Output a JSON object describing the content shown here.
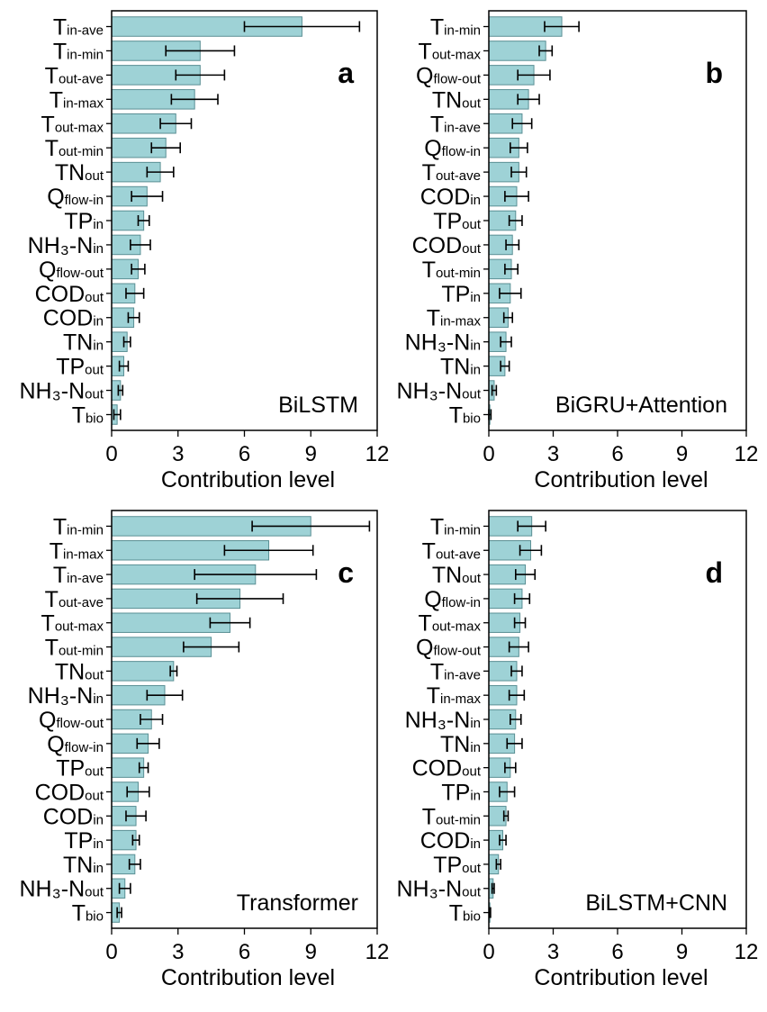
{
  "style": {
    "bar_fill": "#9ed2d6",
    "bar_stroke": "#5a8f94",
    "error_color": "#000000"
  },
  "chart_data": [
    {
      "type": "bar",
      "orientation": "horizontal",
      "panel_letter": "a",
      "model": "BiLSTM",
      "xlabel": "Contribution level",
      "xlim": [
        0,
        12
      ],
      "xticks": [
        "0",
        "3",
        "6",
        "9",
        "12"
      ],
      "categories": [
        {
          "base": "T",
          "sub": "in-ave"
        },
        {
          "base": "T",
          "sub": "in-min"
        },
        {
          "base": "T",
          "sub": "out-ave"
        },
        {
          "base": "T",
          "sub": "in-max"
        },
        {
          "base": "T",
          "sub": "out-max"
        },
        {
          "base": "T",
          "sub": "out-min"
        },
        {
          "base": "TN",
          "sub": "out"
        },
        {
          "base": "Q",
          "sub": "flow-in"
        },
        {
          "base": "TP",
          "sub": "in"
        },
        {
          "base": "NH₃-N",
          "sub": "in"
        },
        {
          "base": "Q",
          "sub": "flow-out"
        },
        {
          "base": "COD",
          "sub": "out"
        },
        {
          "base": "COD",
          "sub": "in"
        },
        {
          "base": "TN",
          "sub": "in"
        },
        {
          "base": "TP",
          "sub": "out"
        },
        {
          "base": "NH₃-N",
          "sub": "out"
        },
        {
          "base": "T",
          "sub": "bio"
        }
      ],
      "values": [
        8.6,
        4.0,
        4.0,
        3.75,
        2.9,
        2.45,
        2.2,
        1.6,
        1.45,
        1.3,
        1.2,
        1.05,
        1.0,
        0.7,
        0.55,
        0.4,
        0.25
      ],
      "errors": [
        2.6,
        1.55,
        1.1,
        1.05,
        0.7,
        0.65,
        0.6,
        0.7,
        0.25,
        0.45,
        0.3,
        0.4,
        0.25,
        0.15,
        0.2,
        0.1,
        0.15
      ]
    },
    {
      "type": "bar",
      "orientation": "horizontal",
      "panel_letter": "b",
      "model": "BiGRU+Attention",
      "xlabel": "Contribution level",
      "xlim": [
        0,
        12
      ],
      "xticks": [
        "0",
        "3",
        "6",
        "9",
        "12"
      ],
      "categories": [
        {
          "base": "T",
          "sub": "in-min"
        },
        {
          "base": "T",
          "sub": "out-max"
        },
        {
          "base": "Q",
          "sub": "flow-out"
        },
        {
          "base": "TN",
          "sub": "out"
        },
        {
          "base": "T",
          "sub": "in-ave"
        },
        {
          "base": "Q",
          "sub": "flow-in"
        },
        {
          "base": "T",
          "sub": "out-ave"
        },
        {
          "base": "COD",
          "sub": "in"
        },
        {
          "base": "TP",
          "sub": "out"
        },
        {
          "base": "COD",
          "sub": "out"
        },
        {
          "base": "T",
          "sub": "out-min"
        },
        {
          "base": "TP",
          "sub": "in"
        },
        {
          "base": "T",
          "sub": "in-max"
        },
        {
          "base": "NH₃-N",
          "sub": "in"
        },
        {
          "base": "TN",
          "sub": "in"
        },
        {
          "base": "NH₃-N",
          "sub": "out"
        },
        {
          "base": "T",
          "sub": "bio"
        }
      ],
      "values": [
        3.4,
        2.65,
        2.1,
        1.85,
        1.55,
        1.4,
        1.4,
        1.3,
        1.25,
        1.1,
        1.05,
        1.0,
        0.9,
        0.8,
        0.75,
        0.25,
        0.05
      ],
      "errors": [
        0.8,
        0.3,
        0.75,
        0.5,
        0.45,
        0.4,
        0.35,
        0.55,
        0.3,
        0.3,
        0.3,
        0.5,
        0.2,
        0.25,
        0.2,
        0.1,
        0.05
      ]
    },
    {
      "type": "bar",
      "orientation": "horizontal",
      "panel_letter": "c",
      "model": "Transformer",
      "xlabel": "Contribution level",
      "xlim": [
        0,
        12
      ],
      "xticks": [
        "0",
        "3",
        "6",
        "9",
        "12"
      ],
      "categories": [
        {
          "base": "T",
          "sub": "in-min"
        },
        {
          "base": "T",
          "sub": "in-max"
        },
        {
          "base": "T",
          "sub": "in-ave"
        },
        {
          "base": "T",
          "sub": "out-ave"
        },
        {
          "base": "T",
          "sub": "out-max"
        },
        {
          "base": "T",
          "sub": "out-min"
        },
        {
          "base": "TN",
          "sub": "out"
        },
        {
          "base": "NH₃-N",
          "sub": "in"
        },
        {
          "base": "Q",
          "sub": "flow-out"
        },
        {
          "base": "Q",
          "sub": "flow-in"
        },
        {
          "base": "TP",
          "sub": "out"
        },
        {
          "base": "COD",
          "sub": "out"
        },
        {
          "base": "COD",
          "sub": "in"
        },
        {
          "base": "TP",
          "sub": "in"
        },
        {
          "base": "TN",
          "sub": "in"
        },
        {
          "base": "NH₃-N",
          "sub": "out"
        },
        {
          "base": "T",
          "sub": "bio"
        }
      ],
      "values": [
        9.0,
        7.1,
        6.5,
        5.8,
        5.35,
        4.5,
        2.8,
        2.4,
        1.8,
        1.65,
        1.45,
        1.2,
        1.1,
        1.1,
        1.05,
        0.6,
        0.35
      ],
      "errors": [
        2.65,
        2.0,
        2.75,
        1.95,
        0.9,
        1.25,
        0.15,
        0.8,
        0.5,
        0.5,
        0.2,
        0.5,
        0.45,
        0.15,
        0.25,
        0.25,
        0.1
      ]
    },
    {
      "type": "bar",
      "orientation": "horizontal",
      "panel_letter": "d",
      "model": "BiLSTM+CNN",
      "xlabel": "Contribution level",
      "xlim": [
        0,
        12
      ],
      "xticks": [
        "0",
        "3",
        "6",
        "9",
        "12"
      ],
      "categories": [
        {
          "base": "T",
          "sub": "in-min"
        },
        {
          "base": "T",
          "sub": "out-ave"
        },
        {
          "base": "TN",
          "sub": "out"
        },
        {
          "base": "Q",
          "sub": "flow-in"
        },
        {
          "base": "T",
          "sub": "out-max"
        },
        {
          "base": "Q",
          "sub": "flow-out"
        },
        {
          "base": "T",
          "sub": "in-ave"
        },
        {
          "base": "T",
          "sub": "in-max"
        },
        {
          "base": "NH₃-N",
          "sub": "in"
        },
        {
          "base": "TN",
          "sub": "in"
        },
        {
          "base": "COD",
          "sub": "out"
        },
        {
          "base": "TP",
          "sub": "in"
        },
        {
          "base": "T",
          "sub": "out-min"
        },
        {
          "base": "COD",
          "sub": "in"
        },
        {
          "base": "TP",
          "sub": "out"
        },
        {
          "base": "NH₃-N",
          "sub": "out"
        },
        {
          "base": "T",
          "sub": "bio"
        }
      ],
      "values": [
        2.0,
        1.95,
        1.7,
        1.55,
        1.45,
        1.4,
        1.3,
        1.3,
        1.25,
        1.2,
        1.0,
        0.85,
        0.8,
        0.65,
        0.45,
        0.2,
        0.05
      ],
      "errors": [
        0.65,
        0.5,
        0.45,
        0.35,
        0.25,
        0.45,
        0.25,
        0.35,
        0.25,
        0.35,
        0.25,
        0.35,
        0.1,
        0.15,
        0.1,
        0.05,
        0.03
      ]
    }
  ]
}
